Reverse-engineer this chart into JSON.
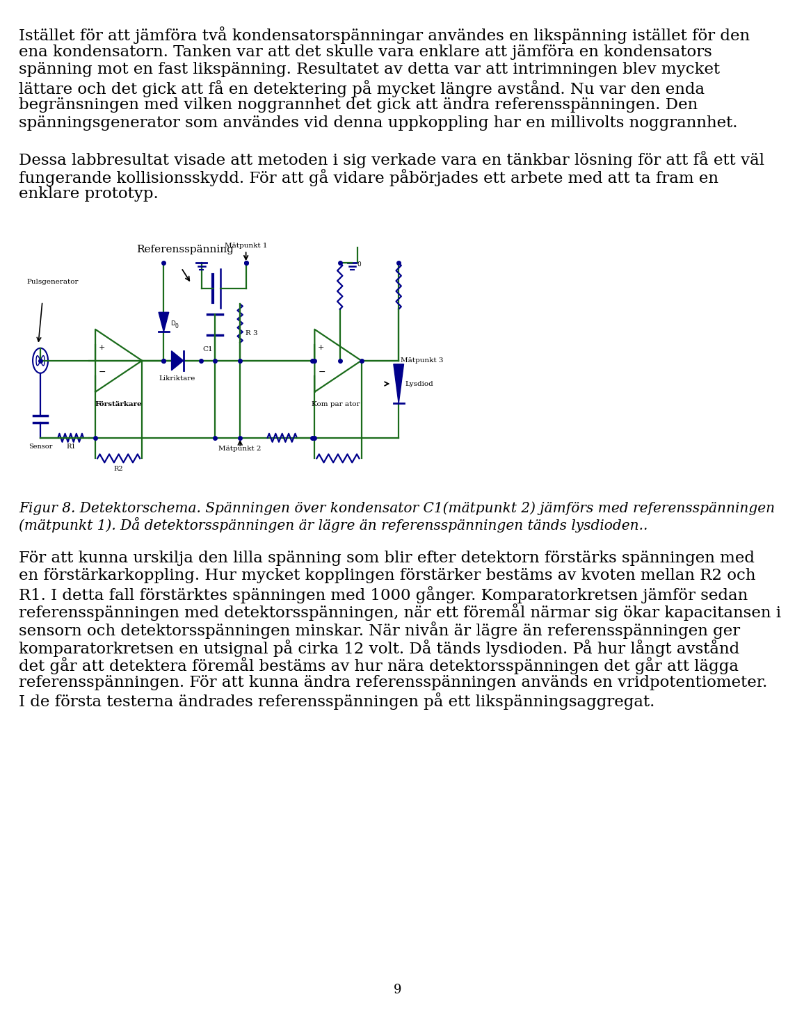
{
  "background_color": "#ffffff",
  "page_number": "9",
  "wire_color": "#1a6b1a",
  "comp_color": "#00008B",
  "text_color": "#000000",
  "font_size_body": 16.5,
  "font_size_caption": 14.5,
  "font_size_small": 8.5,
  "line1": "Istället för att jämföra två kondensatorspänningar användes en likspänning istället för den",
  "line2": "ena kondensatorn. Tanken var att det skulle vara enklare att jämföra en kondensators",
  "line3": "spänning mot en fast likspänning. Resultatet av detta var att intrimningen blev mycket",
  "line4": "lättare och det gick att få en detektering på mycket längre avstånd. Nu var den enda",
  "line5": "begränsningen med vilken noggrannhet det gick att ändra referensspänningen. Den",
  "line6": "spänningsgenerator som användes vid denna uppkoppling har en millivolts noggrannhet.",
  "line7": "",
  "line8": "Dessa labbresultat visade att metoden i sig verkade vara en tänkbar lösning för att få ett väl",
  "line9": "fungerande kollisionsskydd. För att gå vidare påbörjades ett arbete med att ta fram en",
  "line10": "enklare prototyp.",
  "cap_line1": "Figur 8. Detektorschema. Spänningen över kondensator C1(mätpunkt 2) jämförs med referensspänningen",
  "cap_line2": "(mätpunkt 1). Då detektorsspänningen är lägre än referensspänningen tänds lysdioden..",
  "p3_line1": "För att kunna urskilja den lilla spänning som blir efter detektorn förstärks spänningen med",
  "p3_line2": "en förstärkarkoppling. Hur mycket kopplingen förstärker bestäms av kvoten mellan R2 och",
  "p3_line3": "R1. I detta fall förstärktes spänningen med 1000 gånger. Komparatorkretsen jämför sedan",
  "p3_line4": "referensspänningen med detektorsspänningen, när ett föremål närmar sig ökar kapacitansen i",
  "p3_line5": "sensorn och detektorsspänningen minskar. När nivån är lägre än referensspänningen ger",
  "p3_line6": "komparatorkretsen en utsignal på cirka 12 volt. Då tänds lysdioden. På hur långt avstånd",
  "p3_line7": "det går att detektera föremål bestäms av hur nära detektorsspänningen det går att lägga",
  "p3_line8": "referensspänningen. För att kunna ändra referensspänningen används en vridpotentiometer.",
  "p3_line9": "I de första testerna ändrades referensspänningen på ett likspänningsaggregat."
}
